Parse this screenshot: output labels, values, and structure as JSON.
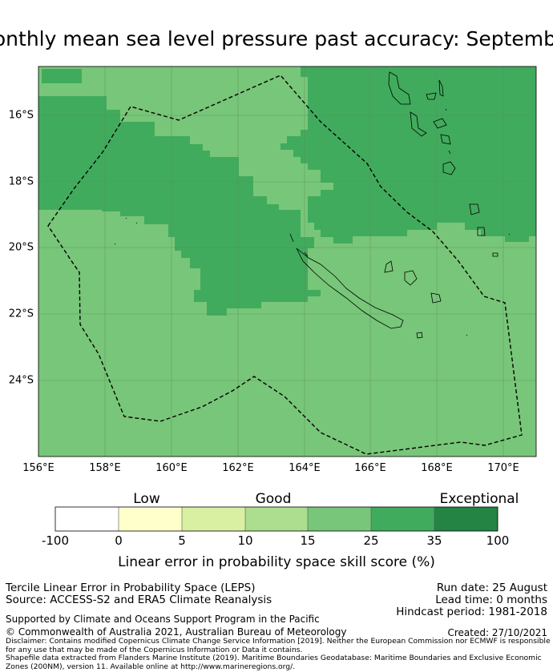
{
  "title": "Monthly mean sea level pressure past accuracy: September",
  "map": {
    "x_ticks": [
      "156°E",
      "158°E",
      "160°E",
      "162°E",
      "164°E",
      "166°E",
      "168°E",
      "170°E"
    ],
    "y_ticks": [
      "16°S",
      "18°S",
      "20°S",
      "22°S",
      "24°S"
    ],
    "colors": {
      "base": "#78c679",
      "darker": "#41ab5d",
      "gridline": "#5a8a5a",
      "boundary": "#000000"
    }
  },
  "colorbar": {
    "categories": [
      "Low",
      "Good",
      "Exceptional"
    ],
    "ticks": [
      "-100",
      "0",
      "5",
      "10",
      "15",
      "25",
      "35",
      "100"
    ],
    "colors": [
      "#ffffff",
      "#ffffcc",
      "#d9f0a3",
      "#addd8e",
      "#78c679",
      "#41ab5d",
      "#238443"
    ],
    "label": "Linear error in probability space skill score (%)"
  },
  "info": {
    "line1": "Tercile Linear Error in Probability Space (LEPS)",
    "line2": "Source: ACCESS-S2 and ERA5 Climate Reanalysis",
    "run_date": "Run date: 25 August",
    "lead_time": "Lead time: 0 months",
    "hindcast": "Hindcast period: 1981-2018",
    "supported": "Supported by Climate and Oceans Support Program in the Pacific",
    "copyright": "© Commonwealth of Australia 2021, Australian Bureau of Meteorology",
    "created": "Created: 27/10/2021",
    "disclaimer": "Disclaimer: Contains modified Copernicus Climate Change Service Information [2019]. Neither the European Commission nor ECMWF is responsible for any use that may be made of the Copernicus Information or Data it contains.",
    "shapefile": "Shapefile data extracted from Flanders Marine Institute (2019). Maritime Boundaries Geodatabase: Maritime Boundaries and Exclusive Economic Zones (200NM), version 11. Available online at http://www.marineregions.org/."
  }
}
